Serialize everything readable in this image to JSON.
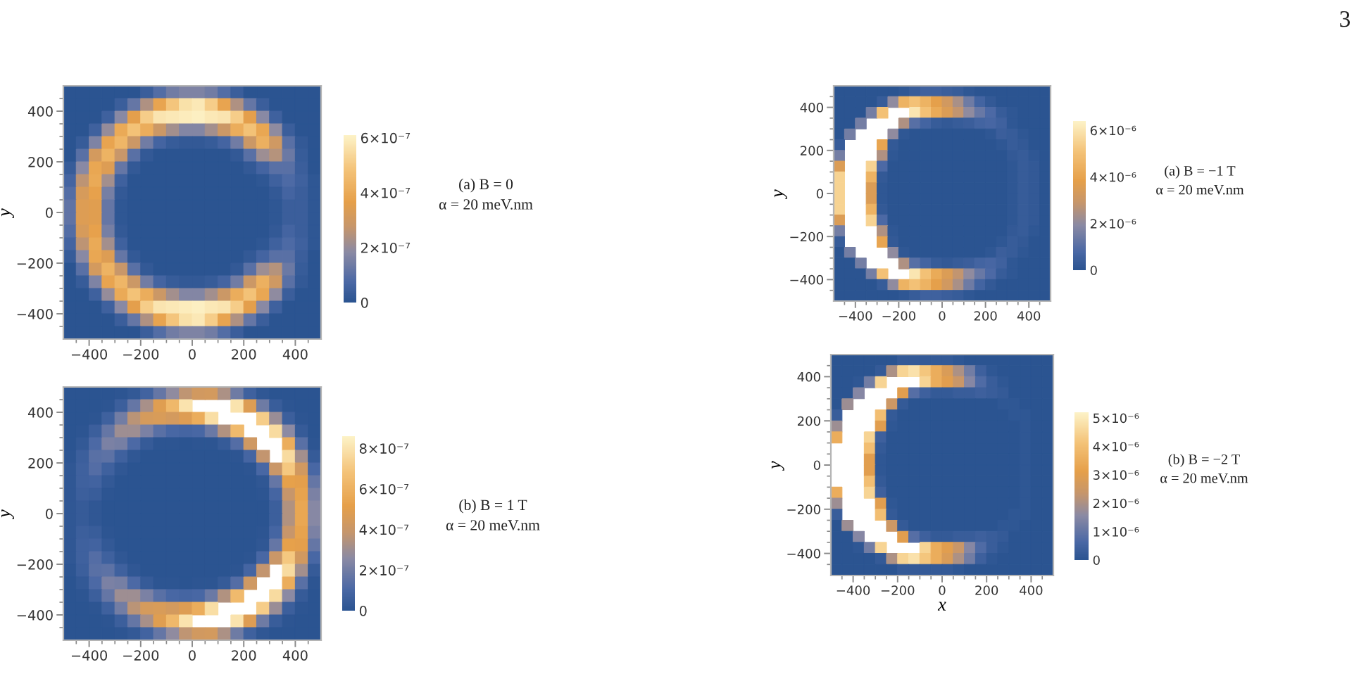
{
  "chart_data": [
    {
      "type": "heatmap",
      "ylabel": "y",
      "xlim": [
        -500,
        500
      ],
      "ylim": [
        -500,
        500
      ],
      "xticks": [
        {
          "value": -450,
          "label": null
        },
        {
          "value": -400,
          "label": "−400"
        },
        {
          "value": -350,
          "label": null
        },
        {
          "value": -300,
          "label": null
        },
        {
          "value": -250,
          "label": null
        },
        {
          "value": -200,
          "label": "−200"
        },
        {
          "value": -150,
          "label": null
        },
        {
          "value": -100,
          "label": null
        },
        {
          "value": -50,
          "label": null
        },
        0,
        {
          "value": 50,
          "label": null
        },
        {
          "value": 100,
          "label": null
        },
        {
          "value": 150,
          "label": null
        },
        200,
        {
          "value": 250,
          "label": null
        },
        {
          "value": 300,
          "label": null
        },
        {
          "value": 350,
          "label": null
        },
        400,
        {
          "value": 450,
          "label": null
        }
      ],
      "yticks": [
        {
          "value": -450,
          "label": null
        },
        {
          "value": -400,
          "label": "−400"
        },
        {
          "value": -350,
          "label": null
        },
        {
          "value": -300,
          "label": null
        },
        {
          "value": -250,
          "label": null
        },
        {
          "value": -200,
          "label": "−200"
        },
        {
          "value": -150,
          "label": null
        },
        {
          "value": -100,
          "label": null
        },
        {
          "value": -50,
          "label": null
        },
        0,
        {
          "value": 50,
          "label": null
        },
        {
          "value": 100,
          "label": null
        },
        {
          "value": 150,
          "label": null
        },
        200,
        {
          "value": 250,
          "label": null
        },
        {
          "value": 300,
          "label": null
        },
        {
          "value": 350,
          "label": null
        },
        400,
        {
          "value": 450,
          "label": null
        }
      ],
      "clim": [
        0,
        6.1e-07
      ],
      "cticks": [
        0,
        {
          "value": 2e-07,
          "label": "2×10⁻⁷"
        },
        {
          "value": 4e-07,
          "label": "4×10⁻⁷"
        },
        {
          "value": 6e-07,
          "label": "6×10⁻⁷"
        }
      ],
      "annotations": [
        "(a) B = 0\nα = 20 meV.nm"
      ],
      "cells": [
        [
          0,
          0,
          0,
          0,
          0,
          0,
          4e-08,
          9e-08,
          1.4e-07,
          1.6e-07,
          1.6e-07,
          1.4e-07,
          9e-08,
          4e-08,
          0,
          0,
          0,
          0,
          0,
          0
        ],
        [
          0,
          0,
          0,
          0,
          4e-08,
          1.2e-07,
          2.4e-07,
          3.8e-07,
          4.9e-07,
          5.6e-07,
          5.8e-07,
          5.1e-07,
          3.8e-07,
          2.4e-07,
          1.2e-07,
          4e-08,
          0,
          0,
          0,
          0
        ],
        [
          0,
          0,
          0,
          5e-08,
          1.8e-07,
          3.6e-07,
          5.1e-07,
          5.7e-07,
          5.8e-07,
          5.9e-07,
          6e-07,
          5.8e-07,
          5.7e-07,
          5.1e-07,
          3.6e-07,
          1.8e-07,
          5e-08,
          0,
          0,
          0
        ],
        [
          0,
          0,
          5e-08,
          2e-07,
          4e-07,
          4.8e-07,
          4.1e-07,
          2.9e-07,
          2.2e-07,
          1.7e-07,
          1.7e-07,
          2.2e-07,
          2.9e-07,
          4.1e-07,
          4.8e-07,
          3.9e-07,
          1.9e-07,
          4e-08,
          0,
          0
        ],
        [
          0,
          3e-08,
          1.6e-07,
          3.8e-07,
          4.4e-07,
          2.9e-07,
          1.4e-07,
          6e-08,
          3e-08,
          2e-08,
          2e-08,
          3e-08,
          6e-08,
          1.4e-07,
          2.9e-07,
          4.2e-07,
          3e-07,
          1e-07,
          2e-08,
          0
        ],
        [
          0,
          1e-07,
          3.1e-07,
          4.3e-07,
          2.8e-07,
          1e-07,
          2e-08,
          0,
          0,
          0,
          0,
          0,
          0,
          2e-08,
          1e-07,
          2.1e-07,
          2.5e-07,
          1.3e-07,
          3e-08,
          0
        ],
        [
          3e-08,
          1.8e-07,
          3.9e-07,
          3.4e-07,
          1.2e-07,
          2e-08,
          0,
          0,
          0,
          0,
          0,
          0,
          0,
          0,
          2e-08,
          6e-08,
          1e-07,
          1e-07,
          4e-08,
          0
        ],
        [
          6e-08,
          2.6e-07,
          4e-07,
          2.2e-07,
          5e-08,
          0,
          0,
          0,
          0,
          0,
          0,
          0,
          0,
          0,
          0,
          1e-08,
          5e-08,
          8e-08,
          5e-08,
          1e-08
        ],
        [
          9e-08,
          3.2e-07,
          3.7e-07,
          1.5e-07,
          2e-08,
          0,
          0,
          0,
          0,
          0,
          0,
          0,
          0,
          0,
          0,
          0,
          2e-08,
          6e-08,
          4e-08,
          1e-08
        ],
        [
          1.1e-07,
          3.4e-07,
          3.5e-07,
          1.2e-07,
          1e-08,
          0,
          0,
          0,
          0,
          0,
          0,
          0,
          0,
          0,
          0,
          0,
          1e-08,
          4e-08,
          4e-08,
          1e-08
        ],
        [
          1.1e-07,
          3.4e-07,
          3.5e-07,
          1.2e-07,
          1e-08,
          0,
          0,
          0,
          0,
          0,
          0,
          0,
          0,
          0,
          0,
          0,
          1e-08,
          4e-08,
          4e-08,
          1e-08
        ],
        [
          9e-08,
          3.2e-07,
          3.7e-07,
          1.5e-07,
          2e-08,
          0,
          0,
          0,
          0,
          0,
          0,
          0,
          0,
          0,
          0,
          0,
          2e-08,
          6e-08,
          4e-08,
          1e-08
        ],
        [
          6e-08,
          2.6e-07,
          4e-07,
          2.2e-07,
          5e-08,
          0,
          0,
          0,
          0,
          0,
          0,
          0,
          0,
          0,
          0,
          1e-08,
          5e-08,
          8e-08,
          5e-08,
          1e-08
        ],
        [
          3e-08,
          1.8e-07,
          3.9e-07,
          3.4e-07,
          1.2e-07,
          2e-08,
          0,
          0,
          0,
          0,
          0,
          0,
          0,
          0,
          2e-08,
          6e-08,
          1e-07,
          1e-07,
          4e-08,
          0
        ],
        [
          0,
          1e-07,
          3.1e-07,
          4.3e-07,
          2.8e-07,
          1e-07,
          2e-08,
          0,
          0,
          0,
          0,
          0,
          0,
          2e-08,
          1e-07,
          2.1e-07,
          2.5e-07,
          1.3e-07,
          3e-08,
          0
        ],
        [
          0,
          3e-08,
          1.6e-07,
          3.8e-07,
          4.4e-07,
          2.9e-07,
          1.4e-07,
          6e-08,
          3e-08,
          2e-08,
          2e-08,
          3e-08,
          6e-08,
          1.4e-07,
          2.9e-07,
          4.2e-07,
          3e-07,
          1e-07,
          2e-08,
          0
        ],
        [
          0,
          0,
          5e-08,
          2e-07,
          4e-07,
          4.8e-07,
          4.1e-07,
          2.9e-07,
          2.2e-07,
          1.7e-07,
          1.7e-07,
          2.2e-07,
          2.9e-07,
          4.1e-07,
          4.8e-07,
          3.9e-07,
          1.9e-07,
          4e-08,
          0,
          0
        ],
        [
          0,
          0,
          0,
          5e-08,
          1.8e-07,
          3.6e-07,
          5.1e-07,
          5.7e-07,
          5.8e-07,
          5.9e-07,
          6e-07,
          5.8e-07,
          5.7e-07,
          5.1e-07,
          3.6e-07,
          1.8e-07,
          5e-08,
          0,
          0,
          0
        ],
        [
          0,
          0,
          0,
          0,
          4e-08,
          1.2e-07,
          2.4e-07,
          3.8e-07,
          4.9e-07,
          5.6e-07,
          5.8e-07,
          5.1e-07,
          3.8e-07,
          2.4e-07,
          1.2e-07,
          4e-08,
          0,
          0,
          0,
          0
        ],
        [
          0,
          0,
          0,
          0,
          0,
          0,
          4e-08,
          9e-08,
          1.4e-07,
          1.6e-07,
          1.6e-07,
          1.4e-07,
          9e-08,
          4e-08,
          0,
          0,
          0,
          0,
          0,
          0
        ]
      ]
    },
    {
      "type": "heatmap",
      "ylabel": "y",
      "xlim": [
        -500,
        500
      ],
      "ylim": [
        -500,
        500
      ],
      "xticks": [
        {
          "value": -450,
          "label": null
        },
        {
          "value": -400,
          "label": "−400"
        },
        {
          "value": -350,
          "label": null
        },
        {
          "value": -300,
          "label": null
        },
        {
          "value": -250,
          "label": null
        },
        {
          "value": -200,
          "label": "−200"
        },
        {
          "value": -150,
          "label": null
        },
        {
          "value": -100,
          "label": null
        },
        {
          "value": -50,
          "label": null
        },
        0,
        {
          "value": 50,
          "label": null
        },
        {
          "value": 100,
          "label": null
        },
        {
          "value": 150,
          "label": null
        },
        200,
        {
          "value": 250,
          "label": null
        },
        {
          "value": 300,
          "label": null
        },
        {
          "value": 350,
          "label": null
        },
        400,
        {
          "value": 450,
          "label": null
        }
      ],
      "yticks": [
        {
          "value": -450,
          "label": null
        },
        {
          "value": -400,
          "label": "−400"
        },
        {
          "value": -350,
          "label": null
        },
        {
          "value": -300,
          "label": null
        },
        {
          "value": -250,
          "label": null
        },
        {
          "value": -200,
          "label": "−200"
        },
        {
          "value": -150,
          "label": null
        },
        {
          "value": -100,
          "label": null
        },
        {
          "value": -50,
          "label": null
        },
        0,
        {
          "value": 50,
          "label": null
        },
        {
          "value": 100,
          "label": null
        },
        {
          "value": 150,
          "label": null
        },
        200,
        {
          "value": 250,
          "label": null
        },
        {
          "value": 300,
          "label": null
        },
        {
          "value": 350,
          "label": null
        },
        400,
        {
          "value": 450,
          "label": null
        }
      ],
      "clim": [
        0,
        6.4e-06
      ],
      "cticks": [
        0,
        {
          "value": 2e-06,
          "label": "2×10⁻⁶"
        },
        {
          "value": 4e-06,
          "label": "4×10⁻⁶"
        },
        {
          "value": 6e-06,
          "label": "6×10⁻⁶"
        }
      ],
      "annotations": [
        "(a) B = −1 T\nα = 20 meV.nm",
        "3"
      ],
      "cells": [
        [
          0,
          0,
          0,
          0,
          0,
          0,
          1e-07,
          3e-07,
          5e-07,
          5e-07,
          4e-07,
          3e-07,
          1e-07,
          0,
          0,
          0,
          0,
          0,
          0,
          0
        ],
        [
          0,
          0,
          0,
          0,
          3e-07,
          2e-06,
          4.5e-06,
          5e-06,
          4.5e-06,
          3.8e-06,
          3.2e-06,
          2.4e-06,
          1.4e-06,
          6e-07,
          2e-07,
          0,
          0,
          0,
          0,
          0
        ],
        [
          0,
          0,
          0,
          1.5e-06,
          5e-06,
          null,
          null,
          6e-06,
          5e-06,
          4.2e-06,
          3.5e-06,
          2.8e-06,
          2e-06,
          1.3e-06,
          8e-07,
          3e-07,
          1e-07,
          0,
          0,
          0
        ],
        [
          0,
          0,
          1.5e-06,
          null,
          null,
          null,
          2.5e-06,
          1e-06,
          6e-07,
          3e-07,
          2e-07,
          3e-07,
          4e-07,
          6e-07,
          7e-07,
          5e-07,
          1e-07,
          0,
          0,
          0
        ],
        [
          0,
          1.5e-06,
          null,
          null,
          null,
          2e-06,
          1e-07,
          0,
          0,
          0,
          0,
          0,
          0,
          0,
          1e-07,
          4e-07,
          3e-07,
          1e-07,
          0,
          0
        ],
        [
          3e-07,
          null,
          null,
          null,
          4e-06,
          2e-07,
          0,
          0,
          0,
          0,
          0,
          0,
          0,
          0,
          0,
          1e-07,
          3e-07,
          2e-07,
          0,
          0
        ],
        [
          1.5e-06,
          null,
          null,
          null,
          2.5e-06,
          1e-07,
          0,
          0,
          0,
          0,
          0,
          0,
          0,
          0,
          0,
          0,
          2e-07,
          3e-07,
          1e-07,
          0
        ],
        [
          3.5e-06,
          null,
          null,
          5.5e-06,
          8e-07,
          0,
          0,
          0,
          0,
          0,
          0,
          0,
          0,
          0,
          0,
          0,
          1e-07,
          3e-07,
          2e-07,
          0
        ],
        [
          5.5e-06,
          null,
          null,
          4.5e-06,
          2e-07,
          0,
          0,
          0,
          0,
          0,
          0,
          0,
          0,
          0,
          0,
          0,
          1e-07,
          3e-07,
          2e-07,
          0
        ],
        [
          5.5e-06,
          null,
          null,
          3.5e-06,
          1e-07,
          0,
          0,
          0,
          0,
          0,
          0,
          0,
          0,
          0,
          0,
          0,
          1e-07,
          3e-07,
          2e-07,
          0
        ],
        [
          5.5e-06,
          null,
          null,
          3.5e-06,
          1e-07,
          0,
          0,
          0,
          0,
          0,
          0,
          0,
          0,
          0,
          0,
          0,
          1e-07,
          3e-07,
          2e-07,
          0
        ],
        [
          5.5e-06,
          null,
          null,
          4.5e-06,
          2e-07,
          0,
          0,
          0,
          0,
          0,
          0,
          0,
          0,
          0,
          0,
          0,
          1e-07,
          3e-07,
          2e-07,
          0
        ],
        [
          3.5e-06,
          null,
          null,
          5.5e-06,
          8e-07,
          0,
          0,
          0,
          0,
          0,
          0,
          0,
          0,
          0,
          0,
          0,
          1e-07,
          3e-07,
          2e-07,
          0
        ],
        [
          1.5e-06,
          null,
          null,
          null,
          2.5e-06,
          1e-07,
          0,
          0,
          0,
          0,
          0,
          0,
          0,
          0,
          0,
          0,
          2e-07,
          3e-07,
          1e-07,
          0
        ],
        [
          3e-07,
          null,
          null,
          null,
          4e-06,
          2e-07,
          0,
          0,
          0,
          0,
          0,
          0,
          0,
          0,
          0,
          1e-07,
          3e-07,
          2e-07,
          0,
          0
        ],
        [
          0,
          1.5e-06,
          null,
          null,
          null,
          2e-06,
          1e-07,
          0,
          0,
          0,
          0,
          0,
          0,
          0,
          1e-07,
          4e-07,
          3e-07,
          1e-07,
          0,
          0
        ],
        [
          0,
          0,
          1.5e-06,
          null,
          null,
          null,
          2.5e-06,
          1e-06,
          6e-07,
          3e-07,
          2e-07,
          3e-07,
          4e-07,
          6e-07,
          7e-07,
          5e-07,
          1e-07,
          0,
          0,
          0
        ],
        [
          0,
          0,
          0,
          1.5e-06,
          5e-06,
          null,
          null,
          6e-06,
          5e-06,
          4.2e-06,
          3.5e-06,
          2.8e-06,
          2e-06,
          1.3e-06,
          8e-07,
          3e-07,
          1e-07,
          0,
          0,
          0
        ],
        [
          0,
          0,
          0,
          0,
          3e-07,
          2e-06,
          4.5e-06,
          5e-06,
          4.5e-06,
          3.8e-06,
          3.2e-06,
          2.4e-06,
          1.4e-06,
          6e-07,
          2e-07,
          0,
          0,
          0,
          0,
          0
        ],
        [
          0,
          0,
          0,
          0,
          0,
          0,
          1e-07,
          3e-07,
          5e-07,
          5e-07,
          4e-07,
          3e-07,
          1e-07,
          0,
          0,
          0,
          0,
          0,
          0,
          0
        ]
      ]
    },
    {
      "type": "heatmap",
      "ylabel": "y",
      "xlim": [
        -500,
        500
      ],
      "ylim": [
        -500,
        500
      ],
      "xticks": [
        {
          "value": -450,
          "label": null
        },
        {
          "value": -400,
          "label": "−400"
        },
        {
          "value": -350,
          "label": null
        },
        {
          "value": -300,
          "label": null
        },
        {
          "value": -250,
          "label": null
        },
        {
          "value": -200,
          "label": "−200"
        },
        {
          "value": -150,
          "label": null
        },
        {
          "value": -100,
          "label": null
        },
        {
          "value": -50,
          "label": null
        },
        0,
        {
          "value": 50,
          "label": null
        },
        {
          "value": 100,
          "label": null
        },
        {
          "value": 150,
          "label": null
        },
        200,
        {
          "value": 250,
          "label": null
        },
        {
          "value": 300,
          "label": null
        },
        {
          "value": 350,
          "label": null
        },
        400,
        {
          "value": 450,
          "label": null
        }
      ],
      "yticks": [
        {
          "value": -450,
          "label": null
        },
        {
          "value": -400,
          "label": "−400"
        },
        {
          "value": -350,
          "label": null
        },
        {
          "value": -300,
          "label": null
        },
        {
          "value": -250,
          "label": null
        },
        {
          "value": -200,
          "label": "−200"
        },
        {
          "value": -150,
          "label": null
        },
        {
          "value": -100,
          "label": null
        },
        {
          "value": -50,
          "label": null
        },
        0,
        {
          "value": 50,
          "label": null
        },
        {
          "value": 100,
          "label": null
        },
        {
          "value": 150,
          "label": null
        },
        200,
        {
          "value": 250,
          "label": null
        },
        {
          "value": 300,
          "label": null
        },
        {
          "value": 350,
          "label": null
        },
        400,
        {
          "value": 450,
          "label": null
        }
      ],
      "clim": [
        0,
        8.6e-07
      ],
      "cticks": [
        0,
        {
          "value": 2e-07,
          "label": "2×10⁻⁷"
        },
        {
          "value": 4e-07,
          "label": "4×10⁻⁷"
        },
        {
          "value": 6e-07,
          "label": "6×10⁻⁷"
        },
        {
          "value": 8e-07,
          "label": "8×10⁻⁷"
        }
      ],
      "annotations": [
        "(b) B = 1 T\nα = 20 meV.nm"
      ],
      "cells": [
        [
          0,
          0,
          0,
          0,
          1e-08,
          3e-08,
          8e-08,
          1.7e-07,
          2.7e-07,
          3.7e-07,
          4.3e-07,
          4.4e-07,
          3.3e-07,
          1.9e-07,
          7e-08,
          2e-08,
          0,
          0,
          0,
          0
        ],
        [
          0,
          0,
          0,
          1e-08,
          6e-08,
          1.7e-07,
          3.2e-07,
          4.9e-07,
          6.3e-07,
          8e-07,
          null,
          null,
          null,
          8e-07,
          4.8e-07,
          1.9e-07,
          5e-08,
          1e-08,
          0,
          0
        ],
        [
          0,
          0,
          1e-08,
          7e-08,
          2e-07,
          3.6e-07,
          4.5e-07,
          4.6e-07,
          4.4e-07,
          4.8e-07,
          5.8e-07,
          7.8e-07,
          null,
          null,
          null,
          7.2e-07,
          2.9e-07,
          6e-08,
          1e-08,
          0
        ],
        [
          0,
          1e-08,
          6e-08,
          1.7e-07,
          3e-07,
          3e-07,
          2.2e-07,
          1.4e-07,
          1e-07,
          9e-08,
          1e-07,
          1.8e-07,
          3.4e-07,
          6.4e-07,
          null,
          null,
          7.7e-07,
          2.6e-07,
          4e-08,
          0
        ],
        [
          0,
          3e-08,
          1.1e-07,
          2.2e-07,
          2.1e-07,
          1.1e-07,
          4e-08,
          1e-08,
          1e-08,
          0,
          1e-08,
          1e-08,
          4e-08,
          1.3e-07,
          4.2e-07,
          null,
          null,
          5.8e-07,
          1.4e-07,
          1e-08
        ],
        [
          1e-08,
          6e-08,
          1.4e-07,
          1.5e-07,
          7e-08,
          2e-08,
          0,
          0,
          0,
          0,
          0,
          0,
          0,
          1e-08,
          9e-08,
          3.8e-07,
          null,
          7.7e-07,
          3.1e-07,
          4e-08
        ],
        [
          2e-08,
          7e-08,
          1.3e-07,
          7e-08,
          2e-08,
          0,
          0,
          0,
          0,
          0,
          0,
          0,
          0,
          0,
          1e-08,
          1e-07,
          4e-07,
          7e-07,
          4.3e-07,
          1e-07
        ],
        [
          2e-08,
          7e-08,
          8e-08,
          3e-08,
          0,
          0,
          0,
          0,
          0,
          0,
          0,
          0,
          0,
          0,
          0,
          2e-08,
          1.7e-07,
          5.2e-07,
          5.1e-07,
          1.7e-07
        ],
        [
          2e-08,
          6e-08,
          5e-08,
          1e-08,
          0,
          0,
          0,
          0,
          0,
          0,
          0,
          0,
          0,
          0,
          0,
          1e-08,
          9e-08,
          3.9e-07,
          5.3e-07,
          2.2e-07
        ],
        [
          2e-08,
          4e-08,
          2e-08,
          0,
          0,
          0,
          0,
          0,
          0,
          0,
          0,
          0,
          0,
          0,
          0,
          0,
          6e-08,
          3.4e-07,
          5.5e-07,
          2.5e-07
        ],
        [
          2e-08,
          4e-08,
          2e-08,
          0,
          0,
          0,
          0,
          0,
          0,
          0,
          0,
          0,
          0,
          0,
          0,
          0,
          6e-08,
          3.4e-07,
          5.5e-07,
          2.5e-07
        ],
        [
          2e-08,
          6e-08,
          5e-08,
          1e-08,
          0,
          0,
          0,
          0,
          0,
          0,
          0,
          0,
          0,
          0,
          0,
          1e-08,
          9e-08,
          3.9e-07,
          5.3e-07,
          2.2e-07
        ],
        [
          2e-08,
          7e-08,
          8e-08,
          3e-08,
          0,
          0,
          0,
          0,
          0,
          0,
          0,
          0,
          0,
          0,
          0,
          2e-08,
          1.7e-07,
          5.2e-07,
          5.1e-07,
          1.7e-07
        ],
        [
          2e-08,
          7e-08,
          1.3e-07,
          7e-08,
          2e-08,
          0,
          0,
          0,
          0,
          0,
          0,
          0,
          0,
          0,
          1e-08,
          1e-07,
          4e-07,
          7e-07,
          4.3e-07,
          1e-07
        ],
        [
          1e-08,
          6e-08,
          1.4e-07,
          1.5e-07,
          7e-08,
          2e-08,
          0,
          0,
          0,
          0,
          0,
          0,
          0,
          1e-08,
          9e-08,
          3.8e-07,
          null,
          7.7e-07,
          3.1e-07,
          4e-08
        ],
        [
          0,
          3e-08,
          1.1e-07,
          2.2e-07,
          2.1e-07,
          1.1e-07,
          4e-08,
          1e-08,
          1e-08,
          0,
          1e-08,
          1e-08,
          4e-08,
          1.3e-07,
          4.2e-07,
          null,
          null,
          5.8e-07,
          1.4e-07,
          1e-08
        ],
        [
          0,
          1e-08,
          6e-08,
          1.7e-07,
          3e-07,
          3e-07,
          2.2e-07,
          1.4e-07,
          1e-07,
          9e-08,
          1e-07,
          1.8e-07,
          3.4e-07,
          6.4e-07,
          null,
          null,
          7.7e-07,
          2.6e-07,
          4e-08,
          0
        ],
        [
          0,
          0,
          1e-08,
          7e-08,
          2e-07,
          3.6e-07,
          4.5e-07,
          4.6e-07,
          4.4e-07,
          4.8e-07,
          5.8e-07,
          7.8e-07,
          null,
          null,
          null,
          7.2e-07,
          2.9e-07,
          6e-08,
          1e-08,
          0
        ],
        [
          0,
          0,
          0,
          1e-08,
          6e-08,
          1.7e-07,
          3.2e-07,
          4.9e-07,
          6.3e-07,
          8e-07,
          null,
          null,
          null,
          8e-07,
          4.8e-07,
          1.9e-07,
          5e-08,
          1e-08,
          0,
          0
        ],
        [
          0,
          0,
          0,
          0,
          1e-08,
          3e-08,
          8e-08,
          1.7e-07,
          2.7e-07,
          3.7e-07,
          4.3e-07,
          4.4e-07,
          3.3e-07,
          1.9e-07,
          7e-08,
          2e-08,
          0,
          0,
          0,
          0
        ]
      ]
    },
    {
      "type": "heatmap",
      "xlabel": "x",
      "ylabel": "y",
      "xlim": [
        -500,
        500
      ],
      "ylim": [
        -500,
        500
      ],
      "xticks": [
        {
          "value": -450,
          "label": null
        },
        {
          "value": -400,
          "label": "−400"
        },
        {
          "value": -350,
          "label": null
        },
        {
          "value": -300,
          "label": null
        },
        {
          "value": -250,
          "label": null
        },
        {
          "value": -200,
          "label": "−200"
        },
        {
          "value": -150,
          "label": null
        },
        {
          "value": -100,
          "label": null
        },
        {
          "value": -50,
          "label": null
        },
        0,
        {
          "value": 50,
          "label": null
        },
        {
          "value": 100,
          "label": null
        },
        {
          "value": 150,
          "label": null
        },
        200,
        {
          "value": 250,
          "label": null
        },
        {
          "value": 300,
          "label": null
        },
        {
          "value": 350,
          "label": null
        },
        400,
        {
          "value": 450,
          "label": null
        }
      ],
      "yticks": [
        {
          "value": -450,
          "label": null
        },
        {
          "value": -400,
          "label": "−400"
        },
        {
          "value": -350,
          "label": null
        },
        {
          "value": -300,
          "label": null
        },
        {
          "value": -250,
          "label": null
        },
        {
          "value": -200,
          "label": "−200"
        },
        {
          "value": -150,
          "label": null
        },
        {
          "value": -100,
          "label": null
        },
        {
          "value": -50,
          "label": null
        },
        0,
        {
          "value": 50,
          "label": null
        },
        {
          "value": 100,
          "label": null
        },
        {
          "value": 150,
          "label": null
        },
        200,
        {
          "value": 250,
          "label": null
        },
        {
          "value": 300,
          "label": null
        },
        {
          "value": 350,
          "label": null
        },
        400,
        {
          "value": 450,
          "label": null
        }
      ],
      "clim": [
        0,
        5.2e-06
      ],
      "cticks": [
        0,
        {
          "value": 1e-06,
          "label": "1×10⁻⁶"
        },
        {
          "value": 2e-06,
          "label": "2×10⁻⁶"
        },
        {
          "value": 3e-06,
          "label": "3×10⁻⁶"
        },
        {
          "value": 4e-06,
          "label": "4×10⁻⁶"
        },
        {
          "value": 5e-06,
          "label": "5×10⁻⁶"
        }
      ],
      "annotations": [
        "(b) B = −2 T\nα = 20 meV.nm"
      ],
      "cells": [
        [
          0,
          0,
          0,
          0,
          0,
          0,
          2e-07,
          2e-07,
          2e-07,
          2e-07,
          2e-07,
          1e-07,
          0,
          0,
          0,
          0,
          0,
          0,
          0,
          0
        ],
        [
          0,
          0,
          0,
          0,
          2e-07,
          2e-06,
          4.5e-06,
          4.8e-06,
          4.2e-06,
          3.5e-06,
          2.8e-06,
          2e-06,
          1.2e-06,
          4e-07,
          1e-07,
          0,
          0,
          0,
          0,
          0
        ],
        [
          0,
          0,
          1e-07,
          1.2e-06,
          4.5e-06,
          null,
          null,
          null,
          4.5e-06,
          3.5e-06,
          3e-06,
          2.4e-06,
          1.5e-06,
          7e-07,
          3e-07,
          1e-07,
          0,
          0,
          0,
          0
        ],
        [
          0,
          0,
          1.5e-06,
          null,
          null,
          null,
          3e-06,
          8e-07,
          4e-07,
          2e-07,
          2e-07,
          3e-07,
          3e-07,
          4e-07,
          3e-07,
          2e-07,
          0,
          0,
          0,
          0
        ],
        [
          0,
          1.8e-06,
          null,
          null,
          null,
          2.5e-06,
          2e-07,
          0,
          0,
          0,
          0,
          0,
          0,
          0,
          0,
          1e-07,
          1e-07,
          0,
          0,
          0
        ],
        [
          3e-07,
          null,
          null,
          null,
          4e-06,
          2e-07,
          0,
          0,
          0,
          0,
          0,
          0,
          0,
          0,
          0,
          0,
          1e-07,
          1e-07,
          0,
          0
        ],
        [
          1.8e-06,
          null,
          null,
          null,
          3e-06,
          1e-07,
          0,
          0,
          0,
          0,
          0,
          0,
          0,
          0,
          0,
          0,
          0,
          1e-07,
          0,
          0
        ],
        [
          3.5e-06,
          null,
          null,
          4.5e-06,
          4e-07,
          0,
          0,
          0,
          0,
          0,
          0,
          0,
          0,
          0,
          0,
          0,
          0,
          1e-07,
          0,
          0
        ],
        [
          null,
          null,
          null,
          4e-06,
          2e-07,
          0,
          0,
          0,
          0,
          0,
          0,
          0,
          0,
          0,
          0,
          0,
          0,
          1e-07,
          0,
          0
        ],
        [
          null,
          null,
          null,
          3e-06,
          1e-07,
          0,
          0,
          0,
          0,
          0,
          0,
          0,
          0,
          0,
          0,
          0,
          0,
          1e-07,
          0,
          0
        ],
        [
          null,
          null,
          null,
          3e-06,
          1e-07,
          0,
          0,
          0,
          0,
          0,
          0,
          0,
          0,
          0,
          0,
          0,
          0,
          1e-07,
          0,
          0
        ],
        [
          null,
          null,
          null,
          4e-06,
          2e-07,
          0,
          0,
          0,
          0,
          0,
          0,
          0,
          0,
          0,
          0,
          0,
          0,
          1e-07,
          0,
          0
        ],
        [
          3.5e-06,
          null,
          null,
          4.5e-06,
          4e-07,
          0,
          0,
          0,
          0,
          0,
          0,
          0,
          0,
          0,
          0,
          0,
          0,
          1e-07,
          0,
          0
        ],
        [
          1.8e-06,
          null,
          null,
          null,
          3e-06,
          1e-07,
          0,
          0,
          0,
          0,
          0,
          0,
          0,
          0,
          0,
          0,
          0,
          1e-07,
          0,
          0
        ],
        [
          3e-07,
          null,
          null,
          null,
          4e-06,
          2e-07,
          0,
          0,
          0,
          0,
          0,
          0,
          0,
          0,
          0,
          0,
          1e-07,
          1e-07,
          0,
          0
        ],
        [
          0,
          1.8e-06,
          null,
          null,
          null,
          2.5e-06,
          2e-07,
          0,
          0,
          0,
          0,
          0,
          0,
          0,
          0,
          1e-07,
          1e-07,
          0,
          0,
          0
        ],
        [
          0,
          0,
          1.5e-06,
          null,
          null,
          null,
          3e-06,
          8e-07,
          4e-07,
          2e-07,
          2e-07,
          3e-07,
          3e-07,
          4e-07,
          3e-07,
          2e-07,
          0,
          0,
          0,
          0
        ],
        [
          0,
          0,
          1e-07,
          1.2e-06,
          4.5e-06,
          null,
          null,
          null,
          4.5e-06,
          3.5e-06,
          3e-06,
          2.4e-06,
          1.5e-06,
          7e-07,
          3e-07,
          1e-07,
          0,
          0,
          0,
          0
        ],
        [
          0,
          0,
          0,
          0,
          2e-07,
          2e-06,
          4.5e-06,
          4.8e-06,
          4.2e-06,
          3.5e-06,
          2.8e-06,
          2e-06,
          1.2e-06,
          4e-07,
          1e-07,
          0,
          0,
          0,
          0,
          0
        ],
        [
          0,
          0,
          0,
          0,
          0,
          0,
          2e-07,
          2e-07,
          2e-07,
          2e-07,
          2e-07,
          1e-07,
          0,
          0,
          0,
          0,
          0,
          0,
          0,
          0
        ]
      ]
    }
  ]
}
